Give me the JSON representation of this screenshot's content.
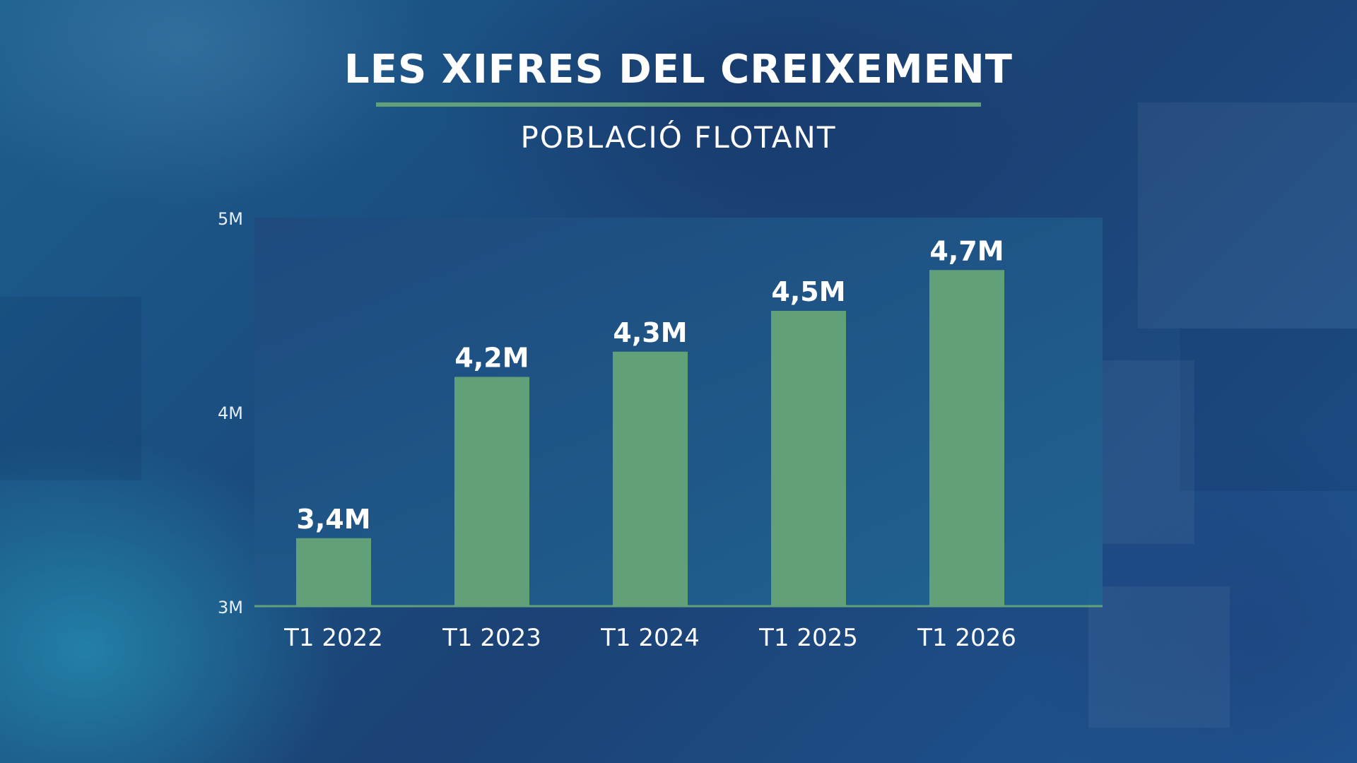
{
  "title": "LES XIFRES DEL CREIXEMENT",
  "subtitle": "POBLACIÓ FLOTANT",
  "colors": {
    "bar": "#62a07a",
    "accent_rule": "#62a07a",
    "plot_area": "#1e4d80",
    "text": "#ffffff",
    "axis_text": "#e6eef6"
  },
  "chart_data": {
    "type": "bar",
    "categories": [
      "T1 2022",
      "T1 2023",
      "T1 2024",
      "T1 2025",
      "T1 2026"
    ],
    "values": [
      3.35,
      4.18,
      4.31,
      4.52,
      4.73
    ],
    "data_labels": [
      "3,4M",
      "4,2M",
      "4,3M",
      "4,5M",
      "4,7M"
    ],
    "y_ticks": [
      {
        "value": 3,
        "label": "3M"
      },
      {
        "value": 4,
        "label": "4M"
      },
      {
        "value": 5,
        "label": "5M"
      }
    ],
    "ylim": [
      3,
      5
    ],
    "grid": false,
    "legend": "none"
  }
}
